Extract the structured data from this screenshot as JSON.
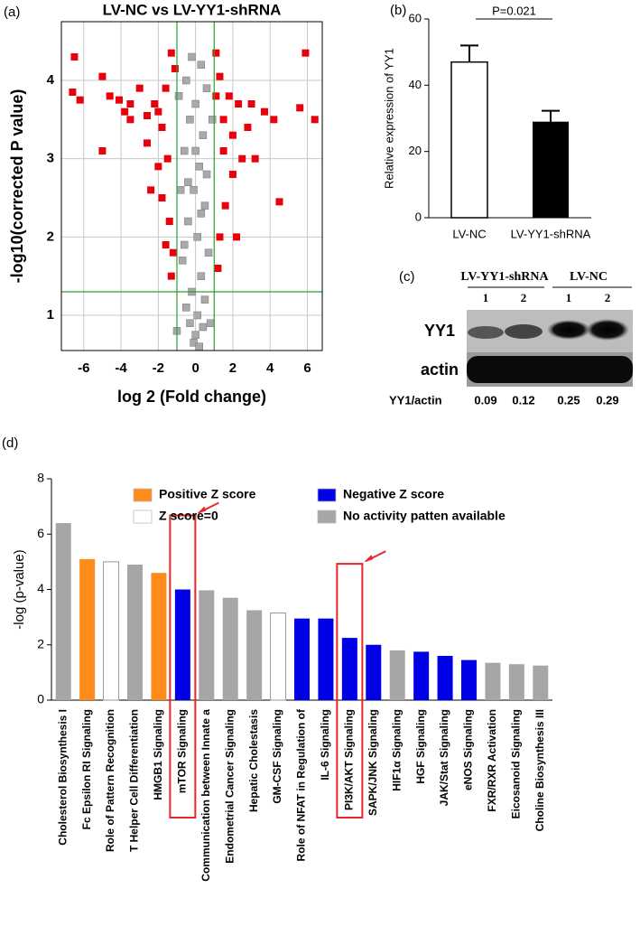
{
  "chart_data": [
    {
      "type": "scatter",
      "panel_label": "(a)",
      "title": "LV-NC vs LV-YY1-shRNA",
      "x_label": "log 2 (Fold change)",
      "y_label": "-log10(corrected P value)",
      "xlim": [
        -7.2,
        6.8
      ],
      "ylim": [
        0.55,
        4.75
      ],
      "xticks": [
        -6,
        -4,
        -2,
        0,
        2,
        4,
        6
      ],
      "yticks": [
        1,
        2,
        3,
        4
      ],
      "grid": true,
      "vlines": [
        -1,
        1
      ],
      "hlines": [
        1.3
      ],
      "line_color": "#2ca02c",
      "series": [
        {
          "color": "#e8000b",
          "x": [
            -6.5,
            -6.6,
            -6.2,
            -5.0,
            -4.6,
            -4.1,
            -5.0,
            -3.8,
            -3.5,
            -3.0,
            -2.6,
            -2.2,
            -2.6,
            -2.0,
            -1.8,
            -1.5,
            -1.8,
            -1.4,
            -1.2,
            -1.3,
            -2.0,
            -1.1,
            -1.3,
            -3.5,
            -1.6,
            1.1,
            1.3,
            1.5,
            2.0,
            2.3,
            2.8,
            3.2,
            3.7,
            4.2,
            5.6,
            6.4,
            5.9,
            4.5,
            2.0,
            1.6,
            1.3,
            1.2,
            2.5,
            1.8,
            3.0,
            1.1,
            -2.4,
            -1.6,
            1.5,
            2.2
          ],
          "y": [
            4.3,
            3.85,
            3.75,
            4.05,
            3.8,
            3.75,
            3.1,
            3.6,
            3.5,
            3.9,
            3.55,
            3.7,
            3.2,
            2.9,
            3.4,
            3.0,
            2.5,
            2.2,
            1.8,
            1.5,
            3.6,
            4.15,
            4.35,
            3.7,
            3.9,
            3.8,
            4.05,
            3.5,
            3.3,
            3.7,
            3.4,
            3.0,
            3.6,
            3.5,
            3.65,
            3.5,
            4.35,
            2.45,
            2.8,
            2.4,
            2.0,
            1.6,
            3.0,
            3.8,
            3.7,
            4.35,
            2.6,
            1.9,
            3.1,
            2.0
          ]
        },
        {
          "color": "#a9a9a9",
          "x": [
            -0.2,
            0.3,
            -0.5,
            0.6,
            0.0,
            -0.3,
            0.4,
            -0.6,
            0.2,
            -0.1,
            0.5,
            -0.4,
            0.1,
            0.7,
            -0.7,
            0.3,
            -0.2,
            0.5,
            -0.5,
            0.1,
            -0.3,
            0.4,
            0.0,
            -0.1,
            0.2,
            -1.0,
            0.8,
            -0.8,
            0.9,
            -0.9,
            0.6,
            -0.6,
            0.0,
            0.3,
            -0.4
          ],
          "y": [
            4.3,
            4.2,
            4.0,
            3.9,
            3.7,
            3.5,
            3.3,
            3.1,
            2.9,
            2.6,
            2.4,
            2.2,
            2.0,
            1.8,
            1.7,
            1.5,
            1.3,
            1.2,
            1.1,
            1.0,
            0.9,
            0.85,
            0.75,
            0.65,
            0.6,
            0.8,
            0.9,
            2.6,
            3.5,
            3.8,
            2.8,
            1.9,
            3.1,
            2.3,
            2.7
          ]
        }
      ]
    },
    {
      "type": "bar",
      "panel_label": "(b)",
      "y_label": "Relative expression of YY1",
      "annotation": "P=0.021",
      "categories": [
        "LV-NC",
        "LV-YY1-shRNA"
      ],
      "values": [
        47,
        29
      ],
      "errors": [
        5,
        3.3
      ],
      "colors": [
        "#ffffff",
        "#000000"
      ],
      "ylim": [
        0,
        60
      ],
      "yticks": [
        0,
        20,
        40,
        60
      ]
    },
    {
      "type": "bar",
      "panel_label": "(d)",
      "y_label": "-log (p-value)",
      "ylim": [
        0,
        8
      ],
      "yticks": [
        0,
        2,
        4,
        6,
        8
      ],
      "legend": [
        {
          "name": "Positive Z score",
          "color": "#ff8c1a"
        },
        {
          "name": "Z score=0",
          "color": "#ffffff"
        },
        {
          "name": "Negative Z score",
          "color": "#0000e6"
        },
        {
          "name": "No activity patten available",
          "color": "#a6a6a6"
        }
      ],
      "categories": [
        "Cholesterol Biosynthesis I",
        "Fc Epsilon RI Signaling",
        "Role of Pattern Recognition",
        "T Helper Cell Differentiation",
        "HMGB1 Signaling",
        "mTOR Signaling",
        "Communication between Innate a",
        "Endometrial Cancer Signaling",
        "Hepatic Cholestasis",
        "GM-CSF Signaling",
        "Role of NFAT in Regulation of",
        "IL-6 Signaling",
        "PI3K/AKT Signaling",
        "SAPK/JNK Signaling",
        "HIF1α Signaling",
        "HGF Signaling",
        "JAK/Stat Signaling",
        "eNOS Signaling",
        "FXR/RXR Activation",
        "Eicosanoid Signaling",
        "Choline Biosynthesis III"
      ],
      "values": [
        6.4,
        5.1,
        5.0,
        4.9,
        4.6,
        4.0,
        3.97,
        3.7,
        3.25,
        3.15,
        2.95,
        2.95,
        2.25,
        2.0,
        1.8,
        1.75,
        1.6,
        1.45,
        1.35,
        1.3,
        1.25
      ],
      "colors": [
        "#a6a6a6",
        "#ff8c1a",
        "#ffffff",
        "#a6a6a6",
        "#ff8c1a",
        "#0000e6",
        "#a6a6a6",
        "#a6a6a6",
        "#a6a6a6",
        "#ffffff",
        "#0000e6",
        "#0000e6",
        "#0000e6",
        "#0000e6",
        "#a6a6a6",
        "#0000e6",
        "#0000e6",
        "#0000e6",
        "#a6a6a6",
        "#a6a6a6",
        "#a6a6a6"
      ],
      "highlighted": [
        "mTOR Signaling",
        "PI3K/AKT Signaling"
      ],
      "highlight_color": "#e8262b"
    }
  ],
  "blot": {
    "panel_label": "(c)",
    "groups": [
      "LV-YY1-shRNA",
      "LV-NC"
    ],
    "lanes": [
      "1",
      "2",
      "1",
      "2"
    ],
    "rows": [
      "YY1",
      "actin"
    ],
    "ratio_label": "YY1/actin",
    "ratios": [
      "0.09",
      "0.12",
      "0.25",
      "0.29"
    ]
  }
}
